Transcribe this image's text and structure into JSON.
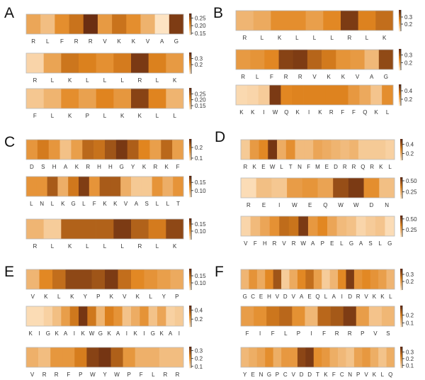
{
  "figure": {
    "title": ""
  },
  "palette": {
    "low": "#fde3c2",
    "mid": "#e1851f",
    "high": "#6b2e12",
    "frame": "#b9b9b9",
    "bar": "#222222"
  },
  "chart_data": [
    {
      "type": "heatmap",
      "panel": "A",
      "strip": 1,
      "sequence": [
        "R",
        "L",
        "F",
        "R",
        "R",
        "V",
        "K",
        "K",
        "V",
        "A",
        "G"
      ],
      "values": [
        0.19,
        0.17,
        0.21,
        0.23,
        0.28,
        0.2,
        0.23,
        0.21,
        0.18,
        0.14,
        0.27
      ],
      "colorbar": {
        "range": [
          0.14,
          0.28
        ],
        "ticks": [
          0.25,
          0.2,
          0.15
        ],
        "tick_labels": [
          "0.25",
          "0.20",
          "0.15"
        ]
      }
    },
    {
      "type": "heatmap",
      "panel": "A",
      "strip": 2,
      "sequence": [
        "R",
        "L",
        "K",
        "L",
        "L",
        "L",
        "R",
        "L",
        "K"
      ],
      "values": [
        0.08,
        0.18,
        0.27,
        0.25,
        0.22,
        0.26,
        0.38,
        0.25,
        0.2
      ],
      "colorbar": {
        "range": [
          0.05,
          0.4
        ],
        "ticks": [
          0.3,
          0.2
        ],
        "tick_labels": [
          "0.3",
          "0.2"
        ]
      }
    },
    {
      "type": "heatmap",
      "panel": "A",
      "strip": 3,
      "sequence": [
        "F",
        "L",
        "K",
        "P",
        "L",
        "K",
        "K",
        "L",
        "L"
      ],
      "values": [
        0.15,
        0.17,
        0.21,
        0.19,
        0.22,
        0.2,
        0.28,
        0.22,
        0.17
      ],
      "colorbar": {
        "range": [
          0.12,
          0.3
        ],
        "ticks": [
          0.25,
          0.2,
          0.15
        ],
        "tick_labels": [
          "0.25",
          "0.20",
          "0.15"
        ]
      }
    },
    {
      "type": "heatmap",
      "panel": "B",
      "strip": 1,
      "sequence": [
        "R",
        "L",
        "K",
        "L",
        "L",
        "L",
        "R",
        "L",
        "K"
      ],
      "values": [
        0.18,
        0.2,
        0.25,
        0.25,
        0.22,
        0.26,
        0.38,
        0.27,
        0.3
      ],
      "colorbar": {
        "range": [
          0.1,
          0.4
        ],
        "ticks": [
          0.3,
          0.2
        ],
        "tick_labels": [
          "0.3",
          "0.2"
        ]
      }
    },
    {
      "type": "heatmap",
      "panel": "B",
      "strip": 2,
      "sequence": [
        "R",
        "L",
        "F",
        "R",
        "R",
        "V",
        "K",
        "K",
        "V",
        "A",
        "G"
      ],
      "values": [
        0.22,
        0.23,
        0.25,
        0.35,
        0.36,
        0.3,
        0.27,
        0.23,
        0.22,
        0.17,
        0.34
      ],
      "colorbar": {
        "range": [
          0.1,
          0.38
        ],
        "ticks": [
          0.3,
          0.2
        ],
        "tick_labels": [
          "0.3",
          "0.2"
        ]
      }
    },
    {
      "type": "heatmap",
      "panel": "B",
      "strip": 3,
      "sequence": [
        "K",
        "K",
        "I",
        "W",
        "Q",
        "K",
        "I",
        "K",
        "R",
        "F",
        "F",
        "Q",
        "K",
        "L"
      ],
      "values": [
        0.08,
        0.09,
        0.12,
        0.52,
        0.32,
        0.33,
        0.33,
        0.33,
        0.33,
        0.33,
        0.27,
        0.22,
        0.14,
        0.3
      ],
      "colorbar": {
        "range": [
          0.05,
          0.55
        ],
        "ticks": [
          0.4,
          0.2
        ],
        "tick_labels": [
          "0.4",
          "0.2"
        ]
      }
    },
    {
      "type": "heatmap",
      "panel": "C",
      "strip": 1,
      "sequence": [
        "D",
        "S",
        "H",
        "A",
        "K",
        "R",
        "H",
        "H",
        "G",
        "Y",
        "K",
        "R",
        "K",
        "F"
      ],
      "values": [
        0.17,
        0.2,
        0.17,
        0.12,
        0.16,
        0.22,
        0.21,
        0.24,
        0.27,
        0.23,
        0.19,
        0.16,
        0.22,
        0.16
      ],
      "colorbar": {
        "range": [
          0.08,
          0.28
        ],
        "ticks": [
          0.2,
          0.1
        ],
        "tick_labels": [
          "0.2",
          "0.1"
        ]
      }
    },
    {
      "type": "heatmap",
      "panel": "C",
      "strip": 2,
      "sequence": [
        "L",
        "N",
        "L",
        "K",
        "G",
        "L",
        "F",
        "K",
        "K",
        "V",
        "A",
        "S",
        "L",
        "L",
        "T"
      ],
      "values": [
        0.12,
        0.12,
        0.16,
        0.1,
        0.14,
        0.18,
        0.12,
        0.16,
        0.16,
        0.1,
        0.08,
        0.08,
        0.12,
        0.1,
        0.12
      ],
      "colorbar": {
        "range": [
          0.06,
          0.19
        ],
        "ticks": [
          0.15,
          0.1
        ],
        "tick_labels": [
          "0.15",
          "0.10"
        ]
      }
    },
    {
      "type": "heatmap",
      "panel": "C",
      "strip": 3,
      "sequence": [
        "R",
        "L",
        "K",
        "L",
        "L",
        "L",
        "R",
        "L",
        "K"
      ],
      "values": [
        0.08,
        0.06,
        0.15,
        0.15,
        0.15,
        0.18,
        0.15,
        0.13,
        0.17
      ],
      "colorbar": {
        "range": [
          0.04,
          0.19
        ],
        "ticks": [
          0.15,
          0.1
        ],
        "tick_labels": [
          "0.15",
          "0.10"
        ]
      }
    },
    {
      "type": "heatmap",
      "panel": "D",
      "strip": 1,
      "sequence": [
        "R",
        "K",
        "E",
        "W",
        "L",
        "T",
        "N",
        "F",
        "M",
        "E",
        "D",
        "R",
        "R",
        "Q",
        "R",
        "K",
        "L"
      ],
      "values": [
        0.12,
        0.25,
        0.3,
        0.5,
        0.2,
        0.28,
        0.16,
        0.16,
        0.22,
        0.2,
        0.18,
        0.16,
        0.18,
        0.12,
        0.12,
        0.12,
        0.1
      ],
      "colorbar": {
        "range": [
          0.05,
          0.52
        ],
        "ticks": [
          0.4,
          0.2
        ],
        "tick_labels": [
          "0.4",
          "0.2"
        ]
      }
    },
    {
      "type": "heatmap",
      "panel": "D",
      "strip": 2,
      "sequence": [
        "R",
        "E",
        "I",
        "W",
        "E",
        "Q",
        "W",
        "W",
        "D",
        "N"
      ],
      "values": [
        0.12,
        0.2,
        0.18,
        0.3,
        0.32,
        0.28,
        0.5,
        0.55,
        0.34,
        0.2
      ],
      "colorbar": {
        "range": [
          0.1,
          0.58
        ],
        "ticks": [
          0.5,
          0.25
        ],
        "tick_labels": [
          "0.50",
          "0.25"
        ]
      }
    },
    {
      "type": "heatmap",
      "panel": "D",
      "strip": 3,
      "sequence": [
        "V",
        "F",
        "H",
        "R",
        "V",
        "R",
        "W",
        "A",
        "P",
        "E",
        "L",
        "G",
        "A",
        "S",
        "L",
        "G"
      ],
      "values": [
        0.12,
        0.2,
        0.26,
        0.32,
        0.42,
        0.4,
        0.55,
        0.3,
        0.35,
        0.26,
        0.2,
        0.18,
        0.12,
        0.15,
        0.17,
        0.1
      ],
      "colorbar": {
        "range": [
          0.08,
          0.58
        ],
        "ticks": [
          0.5,
          0.25
        ],
        "tick_labels": [
          "0.50",
          "0.25"
        ]
      }
    },
    {
      "type": "heatmap",
      "panel": "E",
      "strip": 1,
      "sequence": [
        "V",
        "K",
        "L",
        "K",
        "Y",
        "P",
        "K",
        "V",
        "K",
        "L",
        "Y",
        "P"
      ],
      "values": [
        0.09,
        0.13,
        0.15,
        0.18,
        0.18,
        0.17,
        0.19,
        0.15,
        0.13,
        0.12,
        0.11,
        0.1
      ],
      "colorbar": {
        "range": [
          0.05,
          0.2
        ],
        "ticks": [
          0.15,
          0.1
        ],
        "tick_labels": [
          "0.15",
          "0.10"
        ]
      }
    },
    {
      "type": "heatmap",
      "panel": "E",
      "strip": 2,
      "sequence": [
        "K",
        "I",
        "G",
        "K",
        "A",
        "I",
        "K",
        "W",
        "G",
        "K",
        "A",
        "I",
        "K",
        "I",
        "G",
        "K",
        "A",
        "I"
      ],
      "values": [
        0.05,
        0.05,
        0.08,
        0.13,
        0.22,
        0.32,
        0.48,
        0.32,
        0.16,
        0.3,
        0.25,
        0.12,
        0.18,
        0.25,
        0.12,
        0.2,
        0.08,
        0.1
      ],
      "colorbar": {
        "range": [
          0.03,
          0.5
        ],
        "ticks": [
          0.4,
          0.2
        ],
        "tick_labels": [
          "0.4",
          "0.2"
        ]
      }
    },
    {
      "type": "heatmap",
      "panel": "E",
      "strip": 3,
      "sequence": [
        "V",
        "R",
        "R",
        "F",
        "P",
        "W",
        "Y",
        "W",
        "P",
        "F",
        "L",
        "R",
        "R"
      ],
      "values": [
        0.16,
        0.14,
        0.2,
        0.2,
        0.24,
        0.32,
        0.34,
        0.28,
        0.2,
        0.16,
        0.16,
        0.14,
        0.14
      ],
      "colorbar": {
        "range": [
          0.08,
          0.35
        ],
        "ticks": [
          0.3,
          0.2,
          0.1
        ],
        "tick_labels": [
          "0.3",
          "0.2",
          "0.1"
        ]
      }
    },
    {
      "type": "heatmap",
      "panel": "F",
      "strip": 1,
      "sequence": [
        "G",
        "C",
        "E",
        "H",
        "V",
        "D",
        "V",
        "A",
        "E",
        "Q",
        "L",
        "A",
        "I",
        "D",
        "R",
        "V",
        "K",
        "K",
        "L"
      ],
      "values": [
        0.16,
        0.22,
        0.18,
        0.24,
        0.32,
        0.12,
        0.18,
        0.24,
        0.28,
        0.2,
        0.12,
        0.16,
        0.24,
        0.36,
        0.22,
        0.24,
        0.22,
        0.2,
        0.16
      ],
      "colorbar": {
        "range": [
          0.08,
          0.38
        ],
        "ticks": [
          0.3,
          0.2
        ],
        "tick_labels": [
          "0.3",
          "0.2"
        ]
      }
    },
    {
      "type": "heatmap",
      "panel": "F",
      "strip": 2,
      "sequence": [
        "F",
        "I",
        "F",
        "L",
        "P",
        "I",
        "F",
        "R",
        "R",
        "P",
        "V",
        "S"
      ],
      "values": [
        0.16,
        0.18,
        0.22,
        0.24,
        0.18,
        0.12,
        0.24,
        0.26,
        0.3,
        0.16,
        0.1,
        0.12
      ],
      "colorbar": {
        "range": [
          0.05,
          0.32
        ],
        "ticks": [
          0.2,
          0.1
        ],
        "tick_labels": [
          "0.2",
          "0.1"
        ]
      }
    },
    {
      "type": "heatmap",
      "panel": "F",
      "strip": 3,
      "sequence": [
        "Y",
        "E",
        "N",
        "G",
        "P",
        "C",
        "V",
        "D",
        "D",
        "T",
        "K",
        "F",
        "C",
        "N",
        "P",
        "V",
        "K",
        "L",
        "Q"
      ],
      "values": [
        0.14,
        0.16,
        0.18,
        0.22,
        0.16,
        0.2,
        0.2,
        0.34,
        0.36,
        0.22,
        0.2,
        0.16,
        0.14,
        0.12,
        0.18,
        0.2,
        0.16,
        0.12,
        0.16
      ],
      "colorbar": {
        "range": [
          0.06,
          0.38
        ],
        "ticks": [
          0.3,
          0.2,
          0.1
        ],
        "tick_labels": [
          "0.3",
          "0.2",
          "0.1"
        ]
      }
    }
  ]
}
